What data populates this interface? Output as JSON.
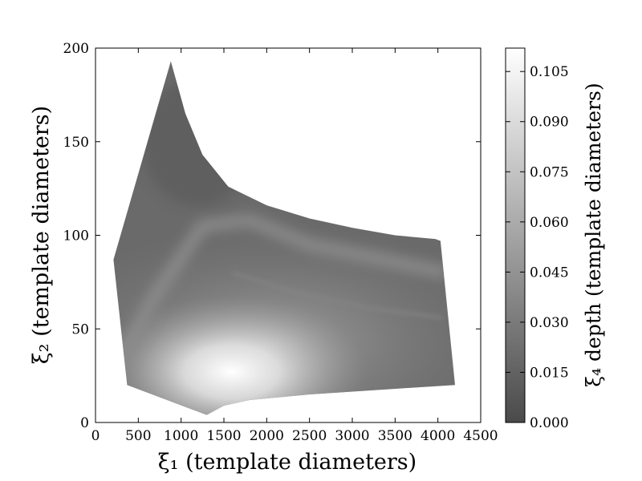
{
  "chart_data": {
    "type": "heatmap",
    "title": "",
    "xlabel": "ξ₁ (template diameters)",
    "ylabel": "ξ₂ (template diameters)",
    "xlim": [
      0,
      4500
    ],
    "ylim": [
      0,
      200
    ],
    "xticks": [
      0,
      500,
      1000,
      1500,
      2000,
      2500,
      3000,
      3500,
      4000,
      4500
    ],
    "yticks": [
      0,
      50,
      100,
      150,
      200
    ],
    "colorbar": {
      "label": "ξ₄ depth (template diameters)",
      "range": [
        0.0,
        0.112
      ],
      "ticks": [
        "0.000",
        "0.015",
        "0.030",
        "0.045",
        "0.060",
        "0.075",
        "0.090",
        "0.105"
      ],
      "colormap": "gray",
      "color_low": "#4a4a4a",
      "color_high": "#ffffff"
    },
    "region_boundary": [
      [
        880,
        193
      ],
      [
        1050,
        165
      ],
      [
        1250,
        143
      ],
      [
        1550,
        126
      ],
      [
        2000,
        116
      ],
      [
        2500,
        109
      ],
      [
        3000,
        104
      ],
      [
        3500,
        100
      ],
      [
        3970,
        98
      ],
      [
        4030,
        97
      ],
      [
        4200,
        20
      ],
      [
        3500,
        18
      ],
      [
        2500,
        15
      ],
      [
        1800,
        12
      ],
      [
        1500,
        9
      ],
      [
        1300,
        4
      ],
      [
        370,
        20
      ],
      [
        210,
        87
      ],
      [
        880,
        193
      ]
    ],
    "bright_spot": {
      "x": 1400,
      "y": 25,
      "value": 0.112
    },
    "ridge_features": [
      {
        "name": "diagonal-ridge",
        "points": [
          [
            250,
            30
          ],
          [
            700,
            68
          ],
          [
            1250,
            105
          ],
          [
            1800,
            108
          ],
          [
            2500,
            95
          ],
          [
            4100,
            80
          ]
        ]
      },
      {
        "name": "faint-curve",
        "points": [
          [
            1600,
            80
          ],
          [
            2300,
            70
          ],
          [
            3200,
            61
          ],
          [
            4050,
            56
          ]
        ]
      }
    ]
  }
}
